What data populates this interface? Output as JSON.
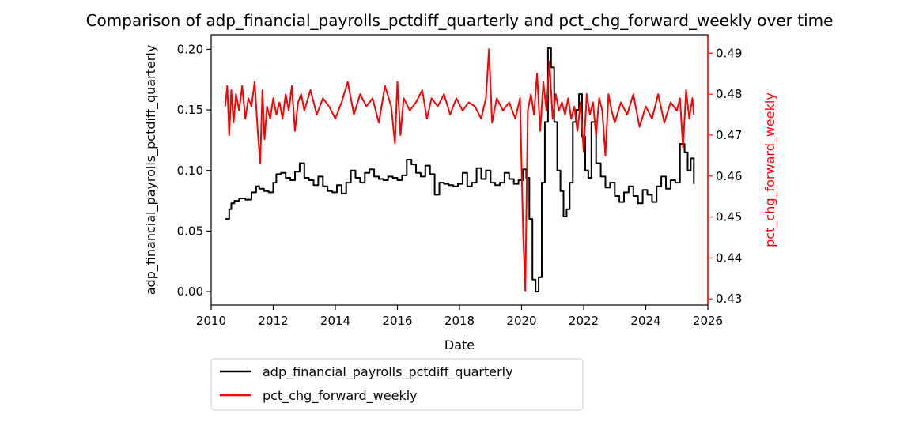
{
  "chart_data": {
    "type": "line",
    "title": "Comparison of adp_financial_payrolls_pctdiff_quarterly and pct_chg_forward_weekly over time",
    "xlabel": "Date",
    "ylabel_left": "adp_financial_payrolls_pctdiff_quarterly",
    "ylabel_right": "pct_chg_forward_weekly",
    "xlim": [
      2010,
      2026
    ],
    "x_ticks": [
      2010,
      2012,
      2014,
      2016,
      2018,
      2020,
      2022,
      2024,
      2026
    ],
    "x_tick_labels": [
      "2010",
      "2012",
      "2014",
      "2016",
      "2018",
      "2020",
      "2022",
      "2024",
      "2026"
    ],
    "ylim_left": [
      -0.011,
      0.212
    ],
    "y_ticks_left": [
      0.0,
      0.05,
      0.1,
      0.15,
      0.2
    ],
    "y_tick_labels_left": [
      "0.00",
      "0.05",
      "0.10",
      "0.15",
      "0.20"
    ],
    "ylim_right": [
      0.4285,
      0.4945
    ],
    "y_ticks_right": [
      0.43,
      0.44,
      0.45,
      0.46,
      0.47,
      0.48,
      0.49
    ],
    "y_tick_labels_right": [
      "0.43",
      "0.44",
      "0.45",
      "0.46",
      "0.47",
      "0.48",
      "0.49"
    ],
    "legend_placement": "below plot",
    "grid": false,
    "series": [
      {
        "name": "adp_financial_payrolls_pctdiff_quarterly",
        "axis": "left",
        "color": "#000000",
        "x": [
          2010.45,
          2010.58,
          2010.65,
          2010.75,
          2010.9,
          2011.1,
          2011.3,
          2011.45,
          2011.55,
          2011.7,
          2011.85,
          2012.0,
          2012.1,
          2012.25,
          2012.4,
          2012.55,
          2012.7,
          2012.85,
          2013.0,
          2013.15,
          2013.3,
          2013.45,
          2013.6,
          2013.75,
          2013.9,
          2014.05,
          2014.2,
          2014.35,
          2014.5,
          2014.65,
          2014.8,
          2014.95,
          2015.1,
          2015.25,
          2015.4,
          2015.55,
          2015.7,
          2015.85,
          2016.0,
          2016.15,
          2016.3,
          2016.45,
          2016.6,
          2016.75,
          2016.9,
          2017.05,
          2017.2,
          2017.35,
          2017.5,
          2017.65,
          2017.8,
          2017.95,
          2018.1,
          2018.25,
          2018.4,
          2018.55,
          2018.7,
          2018.85,
          2019.0,
          2019.15,
          2019.3,
          2019.45,
          2019.6,
          2019.75,
          2019.9,
          2020.05,
          2020.15,
          2020.25,
          2020.35,
          2020.45,
          2020.55,
          2020.65,
          2020.75,
          2020.85,
          2020.95,
          2021.05,
          2021.15,
          2021.25,
          2021.35,
          2021.45,
          2021.55,
          2021.65,
          2021.75,
          2021.85,
          2021.95,
          2022.05,
          2022.15,
          2022.25,
          2022.4,
          2022.55,
          2022.7,
          2022.85,
          2023.0,
          2023.15,
          2023.3,
          2023.45,
          2023.6,
          2023.75,
          2023.9,
          2024.05,
          2024.2,
          2024.35,
          2024.5,
          2024.65,
          2024.8,
          2024.95,
          2025.1,
          2025.25,
          2025.35,
          2025.45,
          2025.55
        ],
        "y": [
          0.06,
          0.068,
          0.073,
          0.075,
          0.077,
          0.076,
          0.082,
          0.087,
          0.085,
          0.083,
          0.082,
          0.09,
          0.097,
          0.098,
          0.094,
          0.092,
          0.099,
          0.106,
          0.094,
          0.092,
          0.088,
          0.095,
          0.087,
          0.083,
          0.082,
          0.088,
          0.081,
          0.09,
          0.1,
          0.094,
          0.09,
          0.098,
          0.101,
          0.095,
          0.093,
          0.092,
          0.095,
          0.094,
          0.092,
          0.096,
          0.109,
          0.105,
          0.098,
          0.095,
          0.104,
          0.097,
          0.08,
          0.09,
          0.089,
          0.088,
          0.087,
          0.089,
          0.098,
          0.087,
          0.09,
          0.102,
          0.093,
          0.1,
          0.09,
          0.088,
          0.09,
          0.098,
          0.093,
          0.089,
          0.092,
          0.101,
          0.094,
          0.06,
          0.01,
          0.0,
          0.012,
          0.09,
          0.14,
          0.201,
          0.185,
          0.14,
          0.1,
          0.083,
          0.062,
          0.068,
          0.09,
          0.14,
          0.15,
          0.163,
          0.128,
          0.1,
          0.094,
          0.14,
          0.106,
          0.095,
          0.086,
          0.09,
          0.079,
          0.074,
          0.082,
          0.087,
          0.079,
          0.073,
          0.084,
          0.08,
          0.074,
          0.087,
          0.095,
          0.085,
          0.092,
          0.09,
          0.122,
          0.115,
          0.1,
          0.11,
          0.089
        ]
      },
      {
        "name": "pct_chg_forward_weekly",
        "axis": "right",
        "color": "#ff0000",
        "x": [
          2010.45,
          2010.52,
          2010.58,
          2010.65,
          2010.72,
          2010.8,
          2010.9,
          2011.0,
          2011.1,
          2011.2,
          2011.3,
          2011.4,
          2011.5,
          2011.58,
          2011.65,
          2011.72,
          2011.8,
          2011.9,
          2012.0,
          2012.1,
          2012.2,
          2012.3,
          2012.4,
          2012.5,
          2012.6,
          2012.7,
          2012.8,
          2012.9,
          2013.0,
          2013.2,
          2013.4,
          2013.6,
          2013.8,
          2014.0,
          2014.2,
          2014.4,
          2014.6,
          2014.8,
          2015.0,
          2015.2,
          2015.4,
          2015.6,
          2015.8,
          2015.92,
          2016.0,
          2016.1,
          2016.2,
          2016.4,
          2016.6,
          2016.8,
          2016.95,
          2017.1,
          2017.3,
          2017.5,
          2017.7,
          2017.9,
          2018.1,
          2018.3,
          2018.5,
          2018.7,
          2018.85,
          2018.95,
          2019.05,
          2019.2,
          2019.4,
          2019.6,
          2019.8,
          2019.95,
          2020.05,
          2020.12,
          2020.2,
          2020.3,
          2020.4,
          2020.5,
          2020.6,
          2020.7,
          2020.8,
          2020.9,
          2021.0,
          2021.1,
          2021.2,
          2021.3,
          2021.4,
          2021.5,
          2021.6,
          2021.7,
          2021.8,
          2021.9,
          2022.0,
          2022.1,
          2022.2,
          2022.3,
          2022.4,
          2022.5,
          2022.6,
          2022.7,
          2022.8,
          2022.9,
          2023.0,
          2023.2,
          2023.4,
          2023.6,
          2023.8,
          2024.0,
          2024.2,
          2024.4,
          2024.6,
          2024.8,
          2025.0,
          2025.1,
          2025.2,
          2025.3,
          2025.4,
          2025.5,
          2025.55
        ],
        "y": [
          0.477,
          0.482,
          0.47,
          0.481,
          0.473,
          0.48,
          0.476,
          0.482,
          0.474,
          0.479,
          0.477,
          0.483,
          0.471,
          0.463,
          0.481,
          0.469,
          0.477,
          0.474,
          0.479,
          0.475,
          0.478,
          0.474,
          0.48,
          0.476,
          0.482,
          0.471,
          0.478,
          0.48,
          0.476,
          0.481,
          0.475,
          0.479,
          0.477,
          0.474,
          0.478,
          0.483,
          0.475,
          0.48,
          0.477,
          0.479,
          0.473,
          0.482,
          0.477,
          0.468,
          0.483,
          0.47,
          0.479,
          0.476,
          0.478,
          0.481,
          0.474,
          0.479,
          0.477,
          0.48,
          0.475,
          0.479,
          0.476,
          0.478,
          0.477,
          0.474,
          0.479,
          0.491,
          0.473,
          0.479,
          0.476,
          0.478,
          0.474,
          0.479,
          0.446,
          0.432,
          0.476,
          0.48,
          0.475,
          0.485,
          0.471,
          0.483,
          0.476,
          0.488,
          0.474,
          0.48,
          0.476,
          0.478,
          0.475,
          0.479,
          0.474,
          0.477,
          0.471,
          0.478,
          0.466,
          0.48,
          0.475,
          0.478,
          0.47,
          0.479,
          0.476,
          0.465,
          0.48,
          0.476,
          0.473,
          0.478,
          0.475,
          0.48,
          0.472,
          0.477,
          0.474,
          0.48,
          0.473,
          0.478,
          0.476,
          0.479,
          0.467,
          0.481,
          0.474,
          0.479,
          0.475
        ]
      }
    ]
  }
}
